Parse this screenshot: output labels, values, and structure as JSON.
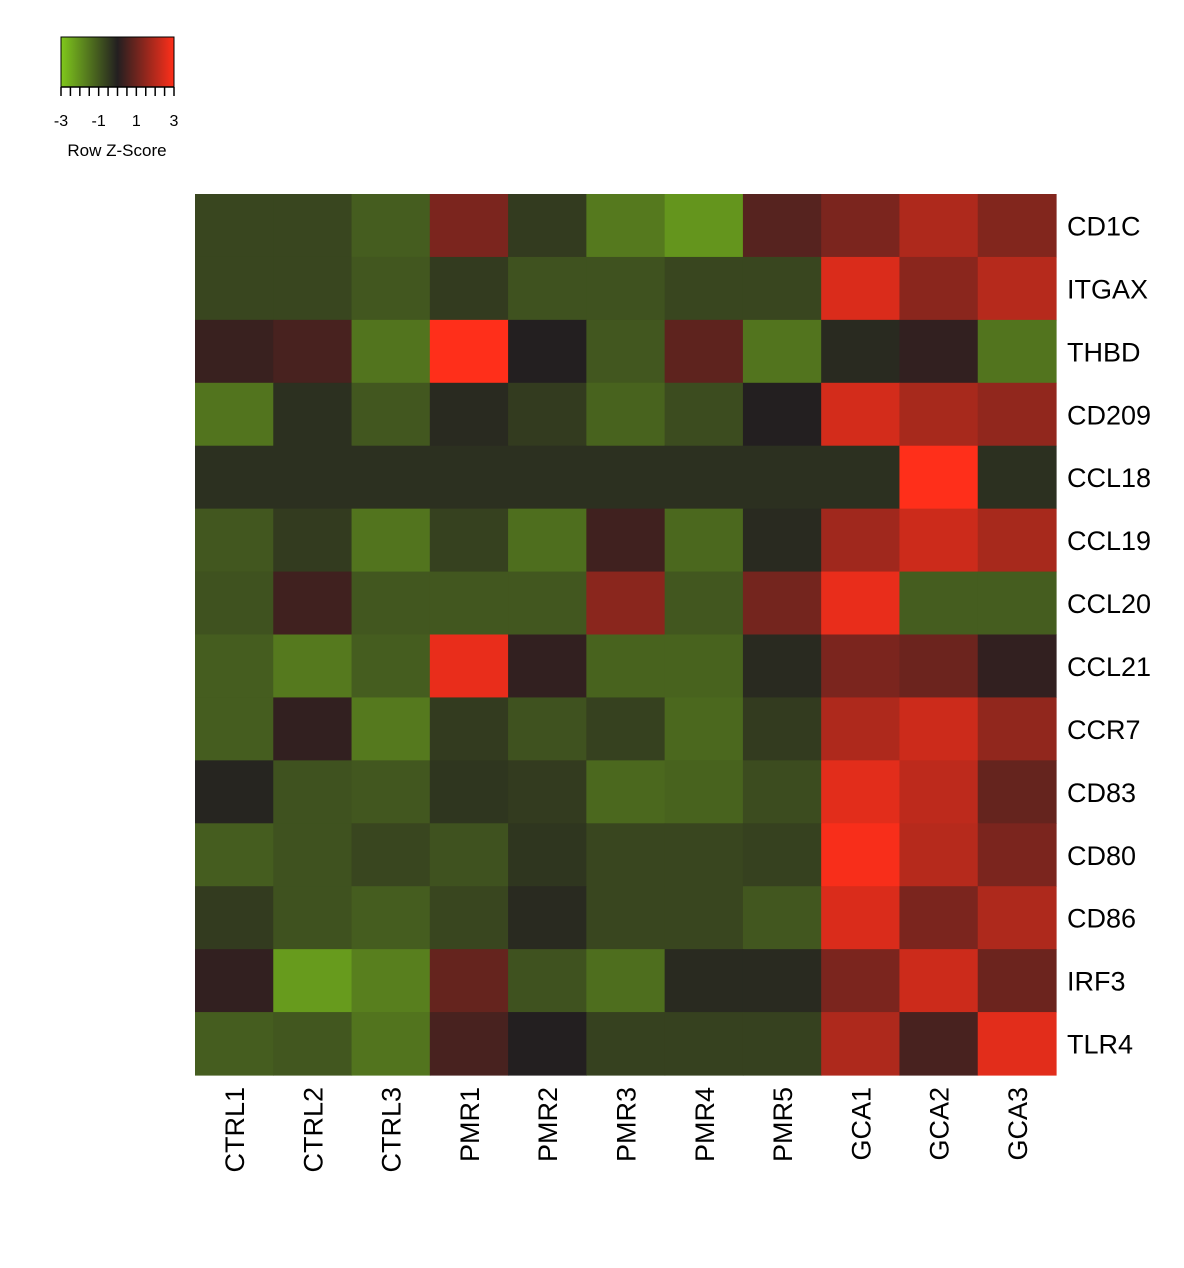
{
  "chart_data": {
    "type": "heatmap",
    "colors": {
      "low": "#80c81c",
      "mid": "#231f20",
      "high": "#ff2f1a"
    },
    "color_key": {
      "title": "Row Z-Score",
      "range": [
        -3,
        3
      ],
      "ticks": [
        -3,
        -2.5,
        -2,
        -1.5,
        -1,
        -0.5,
        0,
        0.5,
        1,
        1.5,
        2,
        2.5,
        3
      ],
      "tick_labels": [
        {
          "value": -3,
          "label": "-3"
        },
        {
          "value": -1,
          "label": "-1"
        },
        {
          "value": 1,
          "label": "1"
        },
        {
          "value": 3,
          "label": "3"
        }
      ]
    },
    "columns": [
      "CTRL1",
      "CTRL2",
      "CTRL3",
      "PMR1",
      "PMR2",
      "PMR3",
      "PMR4",
      "PMR5",
      "GCA1",
      "GCA2",
      "GCA3"
    ],
    "rows": [
      "CD1C",
      "ITGAX",
      "THBD",
      "CD209",
      "CCL18",
      "CCL19",
      "CCL20",
      "CCL21",
      "CCR7",
      "CD83",
      "CD80",
      "CD86",
      "IRF3",
      "TLR4"
    ],
    "values": [
      [
        -0.7,
        -0.7,
        -1.1,
        1.2,
        -0.5,
        -1.6,
        -2.1,
        0.7,
        1.2,
        1.9,
        1.3
      ],
      [
        -0.7,
        -0.7,
        -1.0,
        -0.5,
        -0.9,
        -0.9,
        -0.7,
        -0.7,
        2.5,
        1.4,
        2.0
      ],
      [
        0.3,
        0.5,
        -1.5,
        3.0,
        0.0,
        -1.0,
        0.8,
        -1.5,
        -0.2,
        0.2,
        -1.5
      ],
      [
        -1.5,
        -0.3,
        -1.0,
        -0.2,
        -0.5,
        -1.2,
        -0.8,
        0.0,
        2.4,
        1.8,
        1.5
      ],
      [
        -0.3,
        -0.3,
        -0.3,
        -0.3,
        -0.3,
        -0.3,
        -0.3,
        -0.3,
        -0.3,
        3.3,
        -0.3
      ],
      [
        -1.0,
        -0.5,
        -1.5,
        -0.6,
        -1.4,
        0.4,
        -1.3,
        -0.2,
        1.7,
        2.3,
        1.8
      ],
      [
        -0.9,
        0.4,
        -1.0,
        -1.0,
        -1.0,
        1.4,
        -1.0,
        1.1,
        2.7,
        -1.1,
        -1.1
      ],
      [
        -1.1,
        -1.6,
        -1.1,
        2.7,
        0.2,
        -1.2,
        -1.2,
        -0.2,
        1.2,
        1.0,
        0.2
      ],
      [
        -1.1,
        0.2,
        -1.6,
        -0.5,
        -0.9,
        -0.6,
        -1.3,
        -0.5,
        1.9,
        2.3,
        1.5
      ],
      [
        -0.1,
        -0.9,
        -1.0,
        -0.4,
        -0.5,
        -1.3,
        -1.2,
        -0.8,
        2.6,
        2.1,
        0.9
      ],
      [
        -1.1,
        -0.9,
        -0.7,
        -0.9,
        -0.4,
        -0.7,
        -0.7,
        -0.6,
        2.9,
        2.0,
        1.2
      ],
      [
        -0.5,
        -0.9,
        -1.1,
        -0.7,
        -0.2,
        -0.7,
        -0.7,
        -1.0,
        2.5,
        1.2,
        1.9
      ],
      [
        0.2,
        -2.2,
        -1.7,
        0.9,
        -0.9,
        -1.4,
        -0.2,
        -0.2,
        1.2,
        2.3,
        1.0
      ],
      [
        -1.1,
        -1.0,
        -1.5,
        0.5,
        0.0,
        -0.6,
        -0.6,
        -0.6,
        1.9,
        0.5,
        2.6
      ]
    ]
  }
}
